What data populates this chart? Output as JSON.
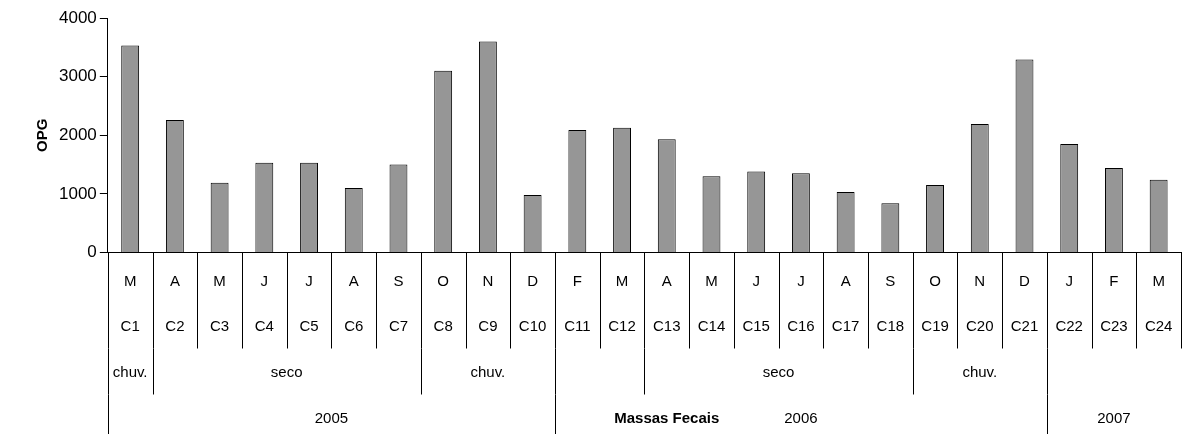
{
  "chart_data": {
    "type": "bar",
    "categories": [
      "M\nC1",
      "A\nC2",
      "M\nC3",
      "J\nC4",
      "J\nC5",
      "A\nC6",
      "S\nC7",
      "O\nC8",
      "N\nC9",
      "D\nC10",
      "F\nC11",
      "M\nC12",
      "A\nC13",
      "M\nC14",
      "J\nC15",
      "J\nC16",
      "A\nC17",
      "S\nC18",
      "O\nC19",
      "N\nC20",
      "D\nC21",
      "J\nC22",
      "F\nC23",
      "M\nC24"
    ],
    "values": [
      3530,
      2260,
      1190,
      1530,
      1530,
      1100,
      1500,
      3100,
      3600,
      980,
      2090,
      2130,
      1930,
      1300,
      1380,
      1350,
      1030,
      840,
      1150,
      2190,
      3290,
      1850,
      1440,
      1240
    ],
    "color": "#969696",
    "ylabel": "OPG",
    "ylim": [
      0,
      4000
    ],
    "yticks": [
      0,
      1000,
      2000,
      3000,
      4000
    ],
    "annotations": [
      "chuv.",
      "seco",
      "chuv.",
      "seco",
      "chuv.",
      "2005",
      "Massas Fecais",
      "2006",
      "2007"
    ],
    "grid": false,
    "legend": false
  }
}
